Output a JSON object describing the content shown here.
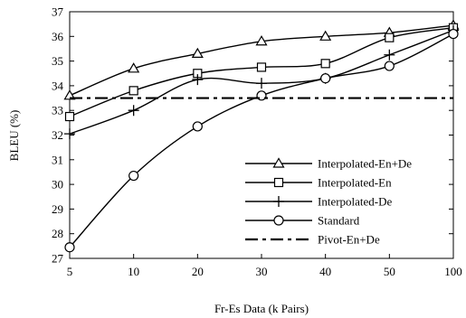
{
  "chart_data": {
    "type": "line",
    "title": "",
    "xlabel": "Fr-Es Data (k Pairs)",
    "ylabel": "BLEU (%)",
    "categories": [
      "5",
      "10",
      "20",
      "30",
      "40",
      "50",
      "100"
    ],
    "ylim": [
      27,
      37
    ],
    "yticks": [
      27,
      28,
      29,
      30,
      31,
      32,
      33,
      34,
      35,
      36,
      37
    ],
    "grid": false,
    "legend_position": "bottom-right",
    "series": [
      {
        "name": "Interpolated-En+De",
        "marker": "triangle",
        "values": [
          33.6,
          34.7,
          35.3,
          35.8,
          36.0,
          36.15,
          36.45
        ]
      },
      {
        "name": "Interpolated-En",
        "marker": "square",
        "values": [
          32.75,
          33.8,
          34.5,
          34.75,
          34.9,
          35.95,
          36.35
        ]
      },
      {
        "name": "Interpolated-De",
        "marker": "plus",
        "values": [
          32.05,
          33.0,
          34.25,
          34.1,
          34.3,
          35.25,
          36.25
        ]
      },
      {
        "name": "Standard",
        "marker": "circle",
        "values": [
          27.45,
          30.35,
          32.35,
          33.6,
          34.3,
          34.8,
          36.1
        ]
      },
      {
        "name": "Pivot-En+De",
        "marker": "none",
        "dash": "dash-dot",
        "values": [
          33.5,
          33.5,
          33.5,
          33.5,
          33.5,
          33.5,
          33.5
        ]
      }
    ]
  }
}
